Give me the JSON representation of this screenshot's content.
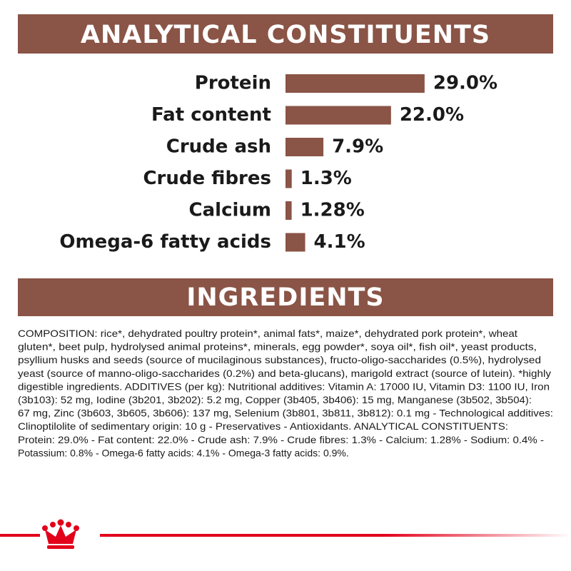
{
  "chart_data": {
    "type": "bar",
    "title": "ANALYTICAL CONSTITUENTS",
    "categories": [
      "Protein",
      "Fat content",
      "Crude ash",
      "Crude fibres",
      "Calcium",
      "Omega-6 fatty acids"
    ],
    "values": [
      29.0,
      22.0,
      7.9,
      1.3,
      1.28,
      4.1
    ],
    "value_labels": [
      "29.0%",
      "22.0%",
      "7.9%",
      "1.3%",
      "1.28%",
      "4.1%"
    ],
    "color": "#8a5446"
  },
  "ingredients": {
    "title": "INGREDIENTS",
    "lines": [
      "COMPOSITION: rice*, dehydrated poultry protein*, animal fats*, maize*, dehydrated pork protein*, wheat",
      "gluten*, beet pulp, hydrolysed animal proteins*, minerals, egg powder*, soya oil*, fish oil*, yeast products,",
      "psyllium husks and seeds (source of mucilaginous substances), fructo-oligo-saccharides (0.5%), hydrolysed",
      "yeast (source of manno-oligo-saccharides (0.2%) and beta-glucans), marigold extract (source of lutein). *highly",
      "digestible ingredients. ADDITIVES (per kg): Nutritional additives: Vitamin A: 17000 IU, Vitamin D3: 1100 IU, Iron",
      "(3b103): 52 mg, Iodine (3b201, 3b202): 5.2 mg, Copper (3b405, 3b406): 15 mg, Manganese (3b502, 3b504):",
      "67 mg, Zinc (3b603, 3b605, 3b606): 137 mg, Selenium (3b801, 3b811, 3b812): 0.1 mg - Technological additives:",
      "Clinoptilolite of sedimentary origin: 10 g - Preservatives - Antioxidants. ANALYTICAL CONSTITUENTS:",
      "Protein: 29.0% - Fat content: 22.0% - Crude ash: 7.9% - Crude fibres: 1.3% - Calcium: 1.28% - Sodium: 0.4% -",
      "Potassium: 0.8% - Omega-6 fatty acids: 4.1% - Omega-3 fatty acids: 0.9%."
    ]
  }
}
